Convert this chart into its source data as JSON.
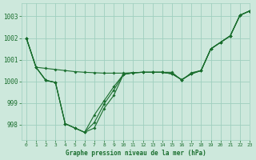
{
  "bg_color": "#cde8dc",
  "grid_color": "#9fcfbf",
  "line_color": "#1a6e2e",
  "marker_color": "#1a6e2e",
  "title": "Graphe pression niveau de la mer (hPa)",
  "xlim": [
    -0.5,
    23
  ],
  "ylim": [
    997.3,
    1003.6
  ],
  "yticks": [
    998,
    999,
    1000,
    1001,
    1002,
    1003
  ],
  "xticks": [
    0,
    1,
    2,
    3,
    4,
    5,
    6,
    7,
    8,
    9,
    10,
    11,
    12,
    13,
    14,
    15,
    16,
    17,
    18,
    19,
    20,
    21,
    22,
    23
  ],
  "series1": [
    1002.0,
    1000.65,
    1000.6,
    1000.55,
    1000.5,
    1000.45,
    1000.42,
    1000.4,
    1000.38,
    1000.38,
    1000.38,
    1000.4,
    1000.42,
    1000.42,
    1000.42,
    1000.42,
    1000.05,
    1000.4,
    1000.5,
    1001.5,
    1001.8,
    1002.1,
    1003.05,
    1003.25
  ],
  "series2": [
    1002.0,
    1000.65,
    1000.05,
    999.95,
    998.05,
    997.85,
    997.65,
    997.85,
    998.75,
    999.35,
    1000.32,
    1000.4,
    1000.42,
    1000.42,
    1000.42,
    1000.35,
    1000.08,
    1000.35,
    1000.5,
    1001.5,
    1001.8,
    1002.1,
    1003.05,
    1003.25
  ],
  "series3": [
    1002.0,
    1000.65,
    1000.05,
    999.95,
    998.05,
    997.85,
    997.65,
    998.45,
    999.1,
    999.75,
    1000.32,
    1000.4,
    1000.42,
    1000.42,
    1000.42,
    1000.35,
    1000.08,
    1000.35,
    1000.5,
    1001.5,
    1001.8,
    1002.1,
    1003.05,
    1003.25
  ],
  "series4": [
    1002.0,
    1000.65,
    1000.05,
    999.95,
    998.05,
    997.85,
    997.65,
    998.1,
    998.95,
    999.6,
    1000.32,
    1000.4,
    1000.42,
    1000.42,
    1000.42,
    1000.35,
    1000.08,
    1000.35,
    1000.5,
    1001.5,
    1001.8,
    1002.1,
    1003.05,
    1003.25
  ]
}
